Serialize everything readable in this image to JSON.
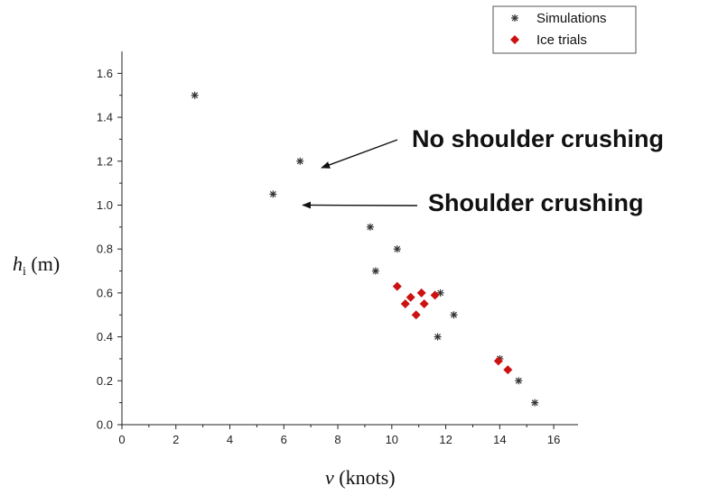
{
  "chart_data": {
    "type": "scatter",
    "title": "",
    "xlabel_italic": "v",
    "xlabel_rest": " (knots)",
    "ylabel_italic": "h",
    "ylabel_sub": "i",
    "ylabel_rest": " (m)",
    "xlim": [
      0,
      16.9
    ],
    "ylim": [
      0,
      1.7
    ],
    "xticks": [
      0,
      2,
      4,
      6,
      8,
      10,
      12,
      14,
      16
    ],
    "yticks": [
      0.0,
      0.2,
      0.4,
      0.6,
      0.8,
      1.0,
      1.2,
      1.4,
      1.6
    ],
    "grid": false,
    "legend_position": "top-right",
    "series": [
      {
        "name": "Simulations",
        "marker": "star",
        "color": "#333333",
        "points": [
          [
            2.7,
            1.5
          ],
          [
            6.6,
            1.2
          ],
          [
            5.6,
            1.05
          ],
          [
            9.2,
            0.9
          ],
          [
            10.2,
            0.8
          ],
          [
            9.4,
            0.7
          ],
          [
            11.8,
            0.6
          ],
          [
            12.3,
            0.5
          ],
          [
            11.7,
            0.4
          ],
          [
            14.0,
            0.3
          ],
          [
            14.7,
            0.2
          ],
          [
            15.3,
            0.1
          ]
        ]
      },
      {
        "name": "Ice trials",
        "marker": "diamond",
        "color": "#cc1111",
        "points": [
          [
            10.2,
            0.63
          ],
          [
            10.5,
            0.55
          ],
          [
            10.7,
            0.58
          ],
          [
            11.1,
            0.6
          ],
          [
            10.9,
            0.5
          ],
          [
            11.2,
            0.55
          ],
          [
            11.6,
            0.59
          ],
          [
            13.95,
            0.29
          ],
          [
            14.3,
            0.25
          ]
        ]
      }
    ],
    "annotations": [
      {
        "text": "No shoulder crushing",
        "arrow_to": [
          7.4,
          1.17
        ]
      },
      {
        "text": "Shoulder crushing",
        "arrow_to": [
          6.7,
          1.0
        ]
      }
    ]
  }
}
